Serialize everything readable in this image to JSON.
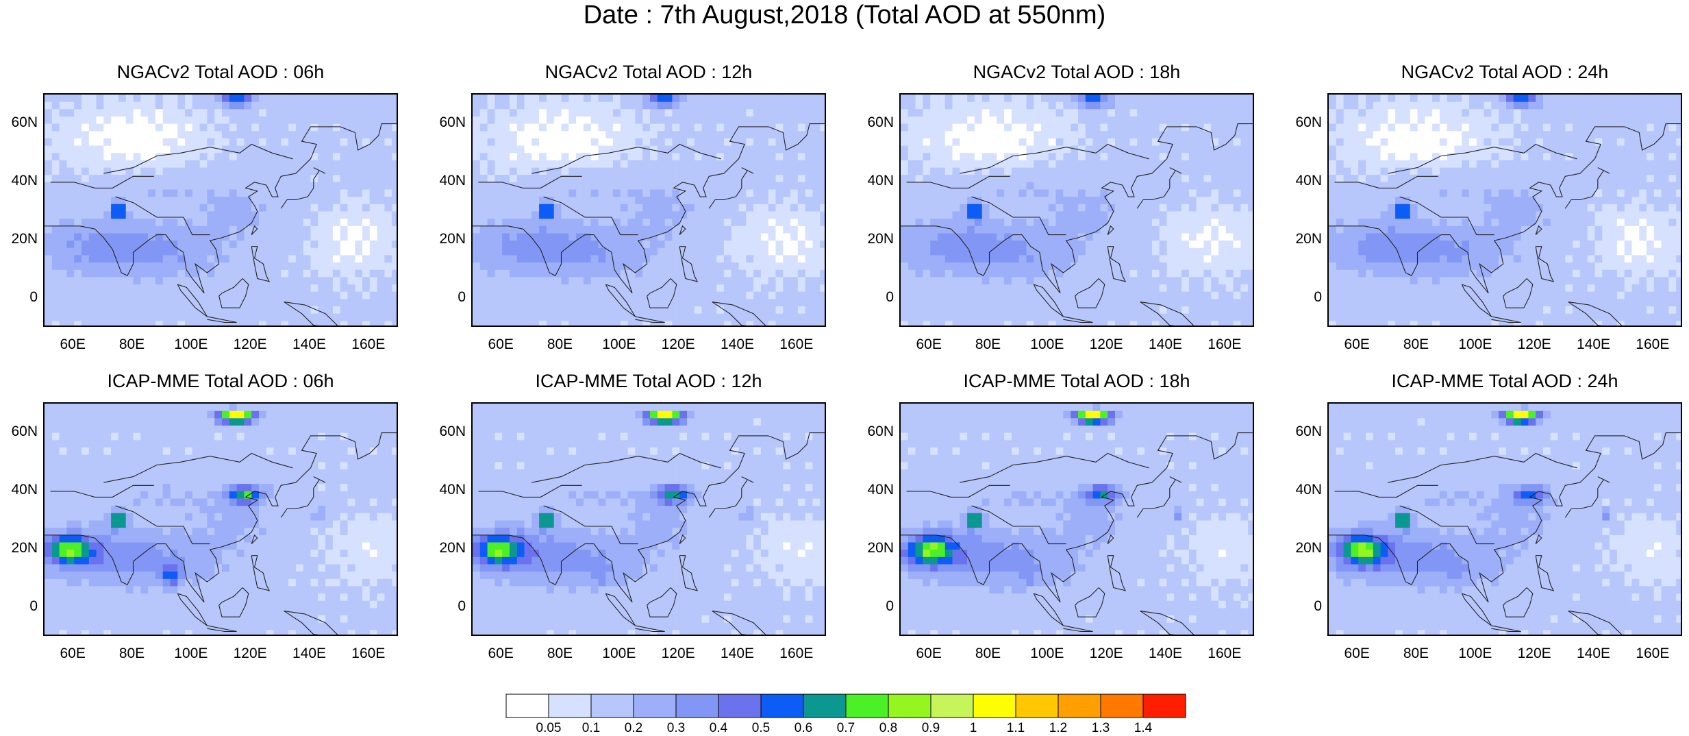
{
  "main_title": "Date : 7th August,2018 (Total AOD at 550nm)",
  "chart_data": {
    "type": "heatmap",
    "title": "Date : 7th August,2018 (Total AOD at 550nm)",
    "variable": "Total AOD at 550nm",
    "date": "7th August,2018",
    "lon_range": [
      50,
      170
    ],
    "lat_range": [
      -10,
      70
    ],
    "x_ticks": [
      "60E",
      "80E",
      "100E",
      "120E",
      "140E",
      "160E"
    ],
    "y_ticks": [
      "60N",
      "40N",
      "20N",
      "0"
    ],
    "panels": [
      {
        "title": "NGACv2 Total AOD : 06h",
        "model": "NGACv2",
        "lead": "06h"
      },
      {
        "title": "NGACv2 Total AOD : 12h",
        "model": "NGACv2",
        "lead": "12h"
      },
      {
        "title": "NGACv2 Total AOD : 18h",
        "model": "NGACv2",
        "lead": "18h"
      },
      {
        "title": "NGACv2 Total AOD : 24h",
        "model": "NGACv2",
        "lead": "24h"
      },
      {
        "title": "ICAP-MME Total AOD : 06h",
        "model": "ICAP-MME",
        "lead": "06h"
      },
      {
        "title": "ICAP-MME Total AOD : 12h",
        "model": "ICAP-MME",
        "lead": "12h"
      },
      {
        "title": "ICAP-MME Total AOD : 18h",
        "model": "ICAP-MME",
        "lead": "18h"
      },
      {
        "title": "ICAP-MME Total AOD : 24h",
        "model": "ICAP-MME",
        "lead": "24h"
      }
    ],
    "colorbar": {
      "levels": [
        "0.05",
        "0.1",
        "0.2",
        "0.3",
        "0.4",
        "0.5",
        "0.6",
        "0.7",
        "0.8",
        "0.9",
        "1",
        "1.1",
        "1.2",
        "1.3",
        "1.4"
      ],
      "colors": [
        "#ffffff",
        "#d6e0ff",
        "#b7c6fb",
        "#9caff8",
        "#8297f5",
        "#6a72ee",
        "#0d5cf5",
        "#0b9890",
        "#4cf027",
        "#94f51f",
        "#c5f558",
        "#ffff00",
        "#ffc800",
        "#ffa000",
        "#ff7800",
        "#ff1e00"
      ]
    }
  }
}
